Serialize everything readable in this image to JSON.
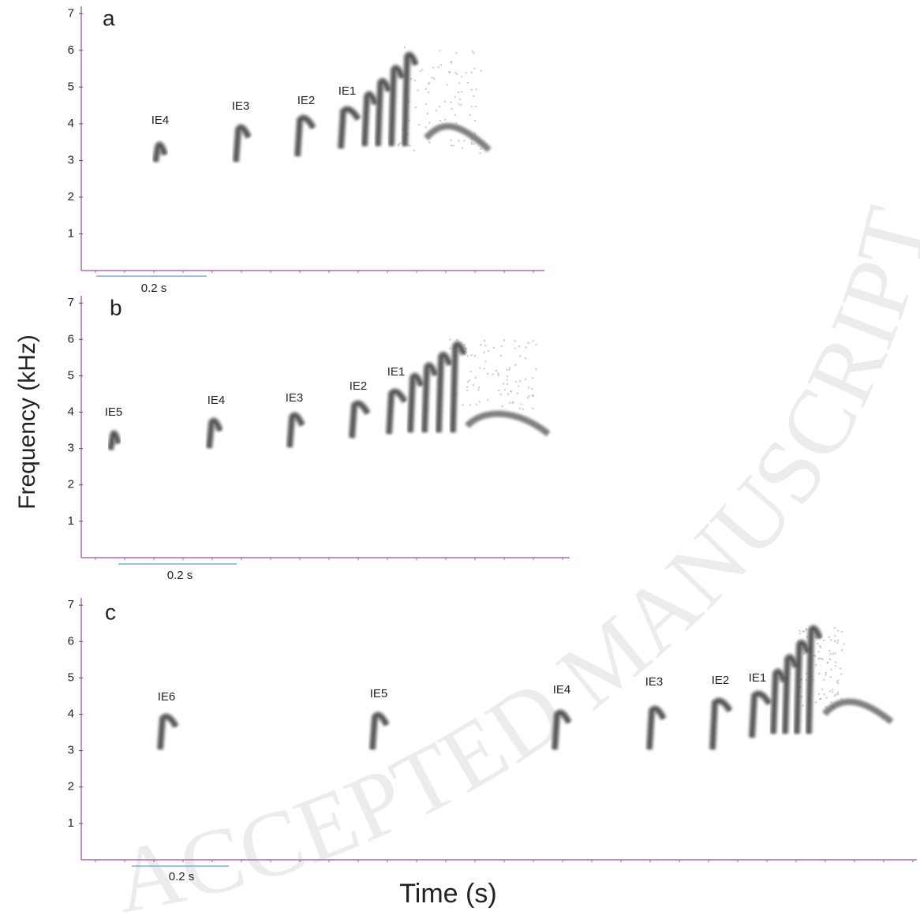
{
  "figure": {
    "y_label": "Frequency (kHz)",
    "x_label": "Time (s)",
    "watermark": "ACCEPTED MANUSCRIPT"
  },
  "chart_data": [
    {
      "type": "spectrogram",
      "title": "a",
      "ylim": [
        0,
        7.2
      ],
      "yticks": [
        1,
        2,
        3,
        4,
        5,
        6,
        7
      ],
      "scale_bar": "0.2 s",
      "labels": [
        "IE4",
        "IE3",
        "IE2",
        "IE1"
      ]
    },
    {
      "type": "spectrogram",
      "title": "b",
      "ylim": [
        0,
        7.2
      ],
      "yticks": [
        1,
        2,
        3,
        4,
        5,
        6,
        7
      ],
      "scale_bar": "0.2 s",
      "labels": [
        "IE5",
        "IE4",
        "IE3",
        "IE2",
        "IE1"
      ]
    },
    {
      "type": "spectrogram",
      "title": "c",
      "ylim": [
        0,
        7.2
      ],
      "yticks": [
        1,
        2,
        3,
        4,
        5,
        6,
        7
      ],
      "scale_bar": "0.2 s",
      "labels": [
        "IE6",
        "IE5",
        "IE4",
        "IE3",
        "IE2",
        "IE1"
      ]
    }
  ]
}
